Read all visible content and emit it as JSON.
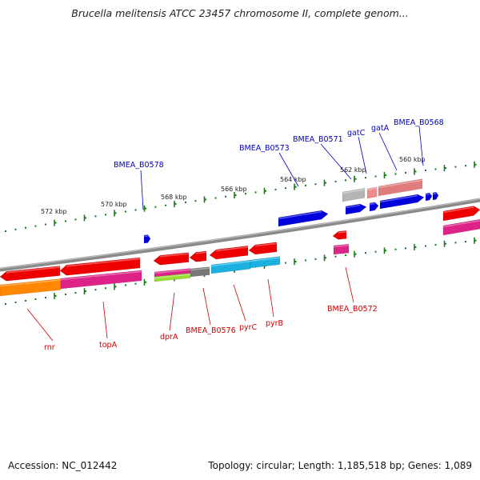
{
  "title": "Brucella melitensis ATCC 23457 chromosome II, complete genom...",
  "footer": {
    "accession": "Accession: NC_012442",
    "stats": "Topology: circular; Length: 1,185,518 bp; Genes: 1,089"
  },
  "colors": {
    "forward_label": "#0000bb",
    "reverse_label": "#cc0000",
    "tick": "#1a7a1a",
    "backbone": "#888888"
  },
  "scale": {
    "labels": [
      "572 kbp",
      "570 kbp",
      "568 kbp",
      "566 kbp",
      "564 kbp",
      "562 kbp",
      "560 kbp"
    ]
  },
  "labels": {
    "forward": [
      "BMEA_B0578",
      "BMEA_B0573",
      "BMEA_B0571",
      "gatC",
      "gatA",
      "BMEA_B0568"
    ],
    "reverse": [
      "rnr",
      "topA",
      "dprA",
      "BMEA_B0576",
      "pyrC",
      "pyrB",
      "BMEA_B0572"
    ]
  }
}
